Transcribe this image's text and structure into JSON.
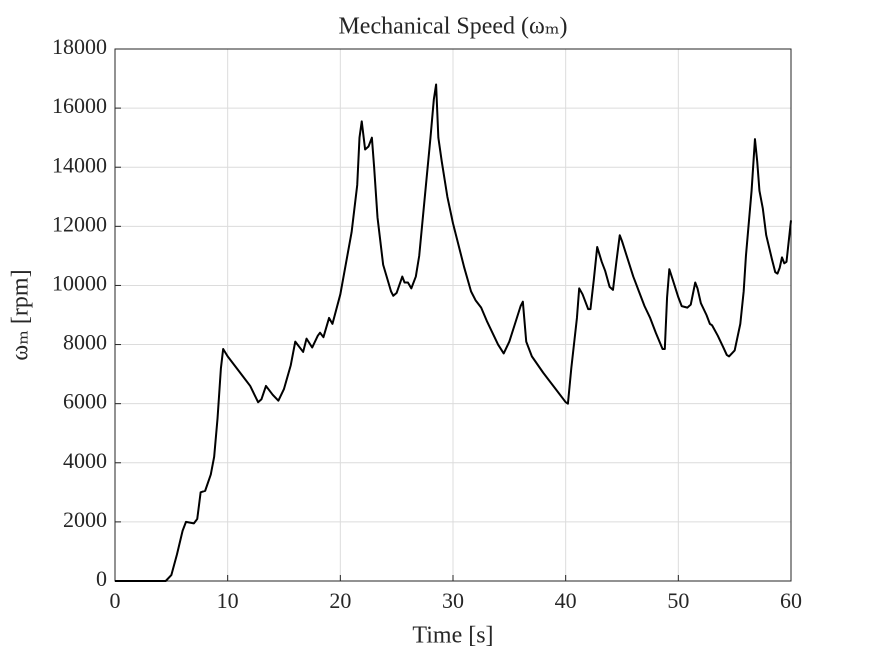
{
  "chart_data": {
    "type": "line",
    "title": "Mechanical Speed (ωₘ)",
    "x_label": "Time [s]",
    "y_label": "ωₘ [rpm]",
    "xlim": [
      0,
      60
    ],
    "xticks": [
      0,
      10,
      20,
      30,
      40,
      50,
      60
    ],
    "ylim": [
      0,
      18000
    ],
    "yticks": [
      0,
      2000,
      4000,
      6000,
      8000,
      10000,
      12000,
      14000,
      16000,
      18000
    ],
    "grid": true,
    "series": [
      {
        "name": "ωₘ",
        "color": "#000000",
        "x": [
          0,
          4.5,
          5,
          5.5,
          6,
          6.3,
          7,
          7.3,
          7.6,
          8,
          8.5,
          8.8,
          9.1,
          9.4,
          9.6,
          10,
          11,
          12,
          12.7,
          13,
          13.4,
          14,
          14.5,
          15,
          15.6,
          16,
          16.7,
          17,
          17.5,
          18,
          18.2,
          18.5,
          19,
          19.3,
          20,
          21,
          21.5,
          21.7,
          21.9,
          22.2,
          22.5,
          22.8,
          23,
          23.3,
          23.8,
          24.5,
          24.7,
          25,
          25.5,
          25.7,
          26,
          26.3,
          26.7,
          27,
          27.5,
          28,
          28.3,
          28.5,
          28.7,
          29,
          29.5,
          30,
          31,
          31.6,
          32,
          32.5,
          33,
          34,
          34.5,
          35,
          35.5,
          36,
          36.2,
          36.5,
          37,
          38,
          39,
          40,
          40.2,
          40.5,
          41,
          41.2,
          41.5,
          42,
          42.2,
          42.5,
          42.8,
          43.2,
          43.5,
          43.9,
          44.2,
          44.5,
          44.8,
          45,
          45.5,
          46,
          46.5,
          47,
          47.5,
          48,
          48.6,
          48.8,
          49,
          49.2,
          49.5,
          50,
          50.3,
          50.8,
          51.1,
          51.5,
          51.7,
          52,
          52.5,
          52.8,
          53,
          53.5,
          54,
          54.3,
          54.5,
          55,
          55.5,
          55.8,
          56,
          56.5,
          56.8,
          57,
          57.2,
          57.5,
          57.8,
          58.3,
          58.6,
          58.8,
          59,
          59.2,
          59.4,
          59.6,
          60
        ],
        "values": [
          0,
          0,
          200,
          900,
          1700,
          2000,
          1950,
          2100,
          3000,
          3050,
          3600,
          4200,
          5500,
          7200,
          7850,
          7600,
          7100,
          6600,
          6050,
          6150,
          6600,
          6300,
          6100,
          6500,
          7300,
          8100,
          7750,
          8200,
          7900,
          8300,
          8400,
          8250,
          8900,
          8700,
          9700,
          11800,
          13400,
          15000,
          15550,
          14600,
          14700,
          15000,
          14000,
          12300,
          10700,
          9800,
          9650,
          9750,
          10300,
          10100,
          10100,
          9900,
          10300,
          11000,
          13000,
          15000,
          16300,
          16800,
          15000,
          14200,
          13000,
          12100,
          10600,
          9800,
          9500,
          9250,
          8800,
          8000,
          7700,
          8100,
          8700,
          9300,
          9450,
          8100,
          7600,
          7050,
          6550,
          6050,
          6000,
          7200,
          8900,
          9900,
          9700,
          9200,
          9200,
          10200,
          11300,
          10800,
          10500,
          9950,
          9850,
          10800,
          11700,
          11500,
          10900,
          10300,
          9800,
          9300,
          8900,
          8400,
          7850,
          7850,
          9600,
          10550,
          10200,
          9600,
          9300,
          9250,
          9350,
          10100,
          9900,
          9400,
          9000,
          8700,
          8650,
          8300,
          7900,
          7650,
          7600,
          7800,
          8700,
          9800,
          11000,
          13200,
          14950,
          14200,
          13200,
          12600,
          11700,
          10900,
          10450,
          10400,
          10600,
          10950,
          10750,
          10800,
          12200
        ]
      }
    ]
  }
}
